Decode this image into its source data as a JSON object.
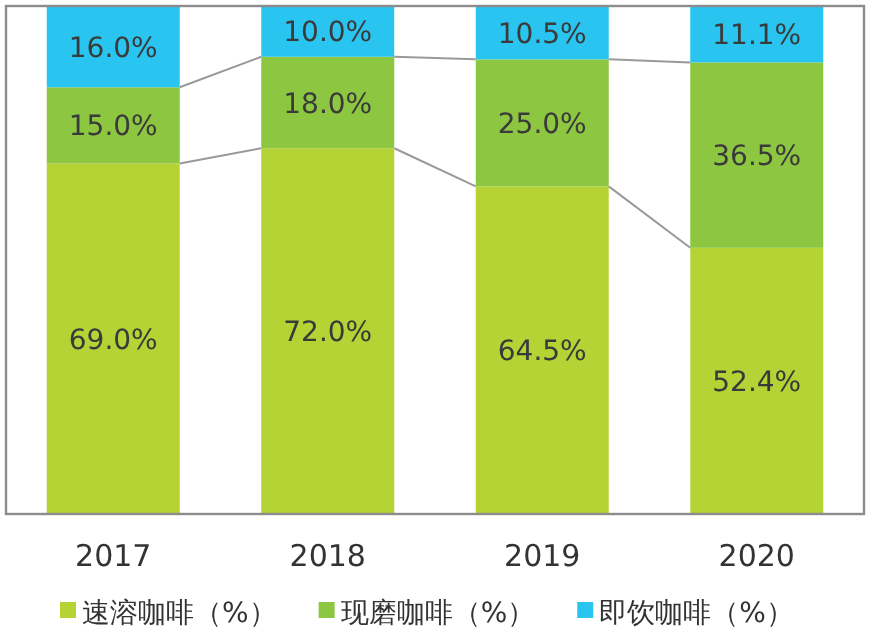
{
  "chart_data": {
    "type": "bar",
    "stacked": true,
    "legend": "bottom",
    "tick_labels": "x",
    "categories": [
      "2017",
      "2018",
      "2019",
      "2020"
    ],
    "series": [
      {
        "name": "速溶咖啡（%）",
        "color": "#b5d334",
        "values": [
          69.0,
          72.0,
          64.5,
          52.4
        ],
        "value_labels": [
          "69.0%",
          "72.0%",
          "64.5%",
          "52.4%"
        ]
      },
      {
        "name": "现磨咖啡（%）",
        "color": "#8dc641",
        "values": [
          15.0,
          18.0,
          25.0,
          36.5
        ],
        "value_labels": [
          "15.0%",
          "18.0%",
          "25.0%",
          "36.5%"
        ]
      },
      {
        "name": "即饮咖啡（%）",
        "color": "#29c4f0",
        "values": [
          16.0,
          10.0,
          10.5,
          11.1
        ],
        "value_labels": [
          "16.0%",
          "10.0%",
          "10.5%",
          "11.1%"
        ]
      }
    ]
  }
}
